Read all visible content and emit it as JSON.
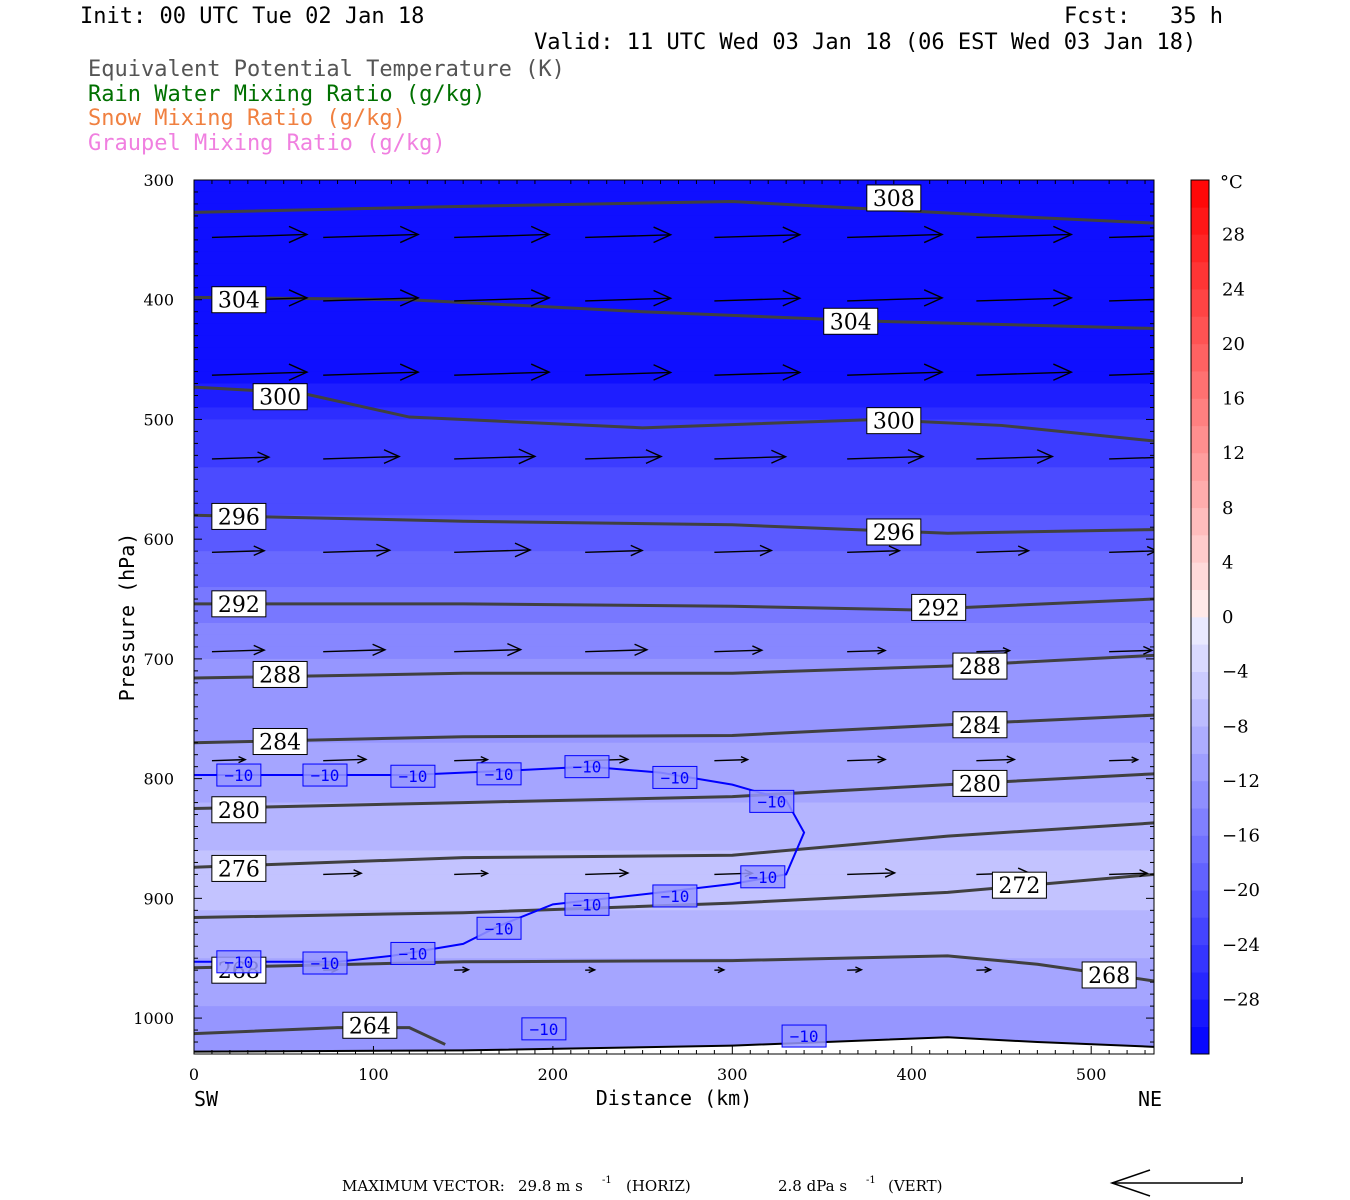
{
  "header": {
    "init": "Init: 00 UTC Tue 02 Jan 18",
    "fcst": "Fcst:   35 h",
    "valid": "Valid: 11 UTC Wed 03 Jan 18 (06 EST Wed 03 Jan 18)"
  },
  "legend_lines": [
    {
      "text": "Equivalent Potential Temperature (K)",
      "color": "#555555"
    },
    {
      "text": "Rain Water Mixing Ratio (g/kg)",
      "color": "#007000"
    },
    {
      "text": "Snow Mixing Ratio (g/kg)",
      "color": "#f08040"
    },
    {
      "text": "Graupel Mixing Ratio (g/kg)",
      "color": "#f080e0"
    }
  ],
  "chart_data": {
    "type": "contour-cross-section",
    "xlabel": "Distance (km)",
    "ylabel": "Pressure (hPa)",
    "xlim": [
      0,
      535
    ],
    "ylim": [
      300,
      1030
    ],
    "y_scale": "linear, inverted",
    "x_ticks": [
      0,
      100,
      200,
      300,
      400,
      500
    ],
    "y_ticks": [
      300,
      400,
      500,
      600,
      700,
      800,
      900,
      1000
    ],
    "x_end_labels": {
      "left": "SW",
      "right": "NE"
    },
    "colorbar": {
      "unit": "°C",
      "levels": [
        -32,
        -30,
        -28,
        -26,
        -24,
        -22,
        -20,
        -18,
        -16,
        -14,
        -12,
        -10,
        -8,
        -6,
        -4,
        -2,
        0,
        2,
        4,
        6,
        8,
        10,
        12,
        14,
        16,
        18,
        20,
        22,
        24,
        26,
        28,
        30,
        32
      ],
      "tick_labels": [
        "28",
        "24",
        "20",
        "16",
        "12",
        "8",
        "4",
        "0",
        "−4",
        "−8",
        "−12",
        "−16",
        "−20",
        "−24",
        "−28"
      ],
      "tick_values": [
        28,
        24,
        20,
        16,
        12,
        8,
        4,
        0,
        -4,
        -8,
        -12,
        -16,
        -20,
        -24,
        -28
      ]
    },
    "theta_e_contours": [
      {
        "value": "308",
        "color": "#404040",
        "points": [
          [
            0,
            327
          ],
          [
            150,
            322
          ],
          [
            300,
            318
          ],
          [
            450,
            330
          ],
          [
            535,
            336
          ]
        ],
        "label_at": [
          390,
          315
        ]
      },
      {
        "value": "304",
        "color": "#404040",
        "points": [
          [
            0,
            398
          ],
          [
            120,
            400
          ],
          [
            250,
            410
          ],
          [
            380,
            418
          ],
          [
            535,
            424
          ]
        ],
        "label_at": [
          366,
          418
        ]
      },
      {
        "value": "304",
        "color": "#404040",
        "points": [],
        "label_at": [
          25,
          400
        ]
      },
      {
        "value": "300",
        "color": "#404040",
        "points": [
          [
            0,
            473
          ],
          [
            60,
            478
          ],
          [
            120,
            498
          ],
          [
            250,
            507
          ],
          [
            380,
            500
          ],
          [
            450,
            505
          ],
          [
            535,
            518
          ]
        ],
        "label_at": [
          390,
          501
        ]
      },
      {
        "value": "300",
        "color": "#404040",
        "points": [],
        "label_at": [
          48,
          481
        ]
      },
      {
        "value": "296",
        "color": "#404040",
        "points": [
          [
            0,
            580
          ],
          [
            150,
            585
          ],
          [
            300,
            588
          ],
          [
            420,
            595
          ],
          [
            535,
            592
          ]
        ],
        "label_at": [
          25,
          581
        ]
      },
      {
        "value": "296",
        "color": "#404040",
        "points": [],
        "label_at": [
          390,
          594
        ]
      },
      {
        "value": "292",
        "color": "#404040",
        "points": [
          [
            0,
            654
          ],
          [
            150,
            654
          ],
          [
            300,
            656
          ],
          [
            400,
            659
          ],
          [
            535,
            650
          ]
        ],
        "label_at": [
          25,
          654
        ]
      },
      {
        "value": "292",
        "color": "#404040",
        "points": [],
        "label_at": [
          415,
          657
        ]
      },
      {
        "value": "288",
        "color": "#404040",
        "points": [
          [
            0,
            716
          ],
          [
            150,
            712
          ],
          [
            300,
            712
          ],
          [
            420,
            706
          ],
          [
            535,
            697
          ]
        ],
        "label_at": [
          48,
          713
        ]
      },
      {
        "value": "288",
        "color": "#404040",
        "points": [],
        "label_at": [
          438,
          706
        ]
      },
      {
        "value": "284",
        "color": "#404040",
        "points": [
          [
            0,
            770
          ],
          [
            150,
            765
          ],
          [
            300,
            764
          ],
          [
            420,
            755
          ],
          [
            535,
            747
          ]
        ],
        "label_at": [
          48,
          769
        ]
      },
      {
        "value": "284",
        "color": "#404040",
        "points": [],
        "label_at": [
          438,
          755
        ]
      },
      {
        "value": "280",
        "color": "#404040",
        "points": [
          [
            0,
            825
          ],
          [
            150,
            820
          ],
          [
            300,
            815
          ],
          [
            420,
            805
          ],
          [
            535,
            796
          ]
        ],
        "label_at": [
          25,
          826
        ]
      },
      {
        "value": "280",
        "color": "#404040",
        "points": [],
        "label_at": [
          438,
          804
        ]
      },
      {
        "value": "276",
        "color": "#404040",
        "points": [
          [
            0,
            874
          ],
          [
            150,
            866
          ],
          [
            300,
            864
          ],
          [
            420,
            848
          ],
          [
            535,
            837
          ]
        ],
        "label_at": [
          25,
          875
        ]
      },
      {
        "value": "272",
        "color": "#404040",
        "points": [
          [
            0,
            916
          ],
          [
            150,
            912
          ],
          [
            300,
            904
          ],
          [
            420,
            895
          ],
          [
            535,
            880
          ]
        ],
        "label_at": [
          460,
          889
        ]
      },
      {
        "value": "268",
        "color": "#404040",
        "points": [
          [
            0,
            958
          ],
          [
            150,
            953
          ],
          [
            300,
            952
          ],
          [
            420,
            948
          ],
          [
            470,
            955
          ],
          [
            535,
            969
          ]
        ],
        "label_at": [
          25,
          960
        ]
      },
      {
        "value": "268",
        "color": "#404040",
        "points": [],
        "label_at": [
          510,
          964
        ]
      },
      {
        "value": "264",
        "color": "#404040",
        "points": [
          [
            0,
            1013
          ],
          [
            80,
            1008
          ],
          [
            120,
            1008
          ],
          [
            140,
            1022
          ]
        ],
        "label_at": [
          98,
          1006
        ]
      }
    ],
    "minus10_contour": {
      "value": "−10",
      "color": "#0000ff",
      "points": [
        [
          0,
          797
        ],
        [
          60,
          797
        ],
        [
          120,
          797
        ],
        [
          180,
          793
        ],
        [
          220,
          790
        ],
        [
          260,
          795
        ],
        [
          300,
          805
        ],
        [
          330,
          818
        ],
        [
          340,
          845
        ],
        [
          330,
          880
        ],
        [
          300,
          888
        ],
        [
          260,
          895
        ],
        [
          200,
          905
        ],
        [
          170,
          923
        ],
        [
          150,
          938
        ],
        [
          110,
          948
        ],
        [
          80,
          953
        ],
        [
          0,
          953
        ]
      ],
      "labels_at": [
        [
          25,
          797
        ],
        [
          73,
          797
        ],
        [
          122,
          798
        ],
        [
          170,
          796
        ],
        [
          219,
          790
        ],
        [
          268,
          799
        ],
        [
          322,
          819
        ],
        [
          317,
          882
        ],
        [
          268,
          898
        ],
        [
          219,
          905
        ],
        [
          170,
          925
        ],
        [
          122,
          946
        ],
        [
          73,
          954
        ],
        [
          25,
          953
        ],
        [
          195,
          1009
        ],
        [
          340,
          1015
        ]
      ]
    },
    "wind_vectors": {
      "x_positions": [
        10,
        72,
        145,
        218,
        290,
        364,
        436,
        510
      ],
      "rows": [
        {
          "p": 348,
          "u": [
            1,
            1,
            1,
            0.9,
            0.9,
            1,
            1,
            1
          ]
        },
        {
          "p": 401,
          "u": [
            1,
            1,
            1,
            0.9,
            0.9,
            1,
            1,
            1
          ]
        },
        {
          "p": 463,
          "u": [
            1,
            1,
            1,
            0.9,
            0.9,
            1,
            1,
            1
          ]
        },
        {
          "p": 533,
          "u": [
            0.6,
            0.8,
            0.85,
            0.8,
            0.75,
            0.8,
            0.8,
            0.9
          ]
        },
        {
          "p": 611,
          "u": [
            0.55,
            0.7,
            0.8,
            0.6,
            0.6,
            0.55,
            0.55,
            0.5
          ]
        },
        {
          "p": 694,
          "u": [
            0.55,
            0.65,
            0.7,
            0.65,
            0.5,
            0.4,
            0.35,
            0.45
          ]
        },
        {
          "p": 785,
          "u": [
            0.35,
            0.45,
            0.35,
            0.45,
            0.35,
            0.4,
            0.4,
            0.3
          ]
        },
        {
          "p": 880,
          "u": [
            0.3,
            0.4,
            0.35,
            0.45,
            0.4,
            0.5,
            0.55,
            0.4
          ]
        },
        {
          "p": 960,
          "u": [
            0.1,
            0.15,
            0.15,
            0.1,
            0.1,
            0.15,
            0.15,
            0.1
          ]
        }
      ]
    },
    "temperature_shading": {
      "rows": [
        {
          "p": 300,
          "t": -31
        },
        {
          "p": 450,
          "t": -31
        },
        {
          "p": 500,
          "t": -25
        },
        {
          "p": 560,
          "t": -22
        },
        {
          "p": 620,
          "t": -18
        },
        {
          "p": 700,
          "t": -13
        },
        {
          "p": 800,
          "t": -10
        },
        {
          "p": 880,
          "t": -6
        },
        {
          "p": 960,
          "t": -10
        },
        {
          "p": 1030,
          "t": -13
        }
      ]
    }
  },
  "footer": {
    "max_vector_label": "MAXIMUM VECTOR:",
    "horiz_value": "29.8 m s",
    "horiz_unit": "(HORIZ)",
    "vert_value": "2.8 dPa s",
    "vert_unit": "(VERT)",
    "exponent": "-1"
  }
}
